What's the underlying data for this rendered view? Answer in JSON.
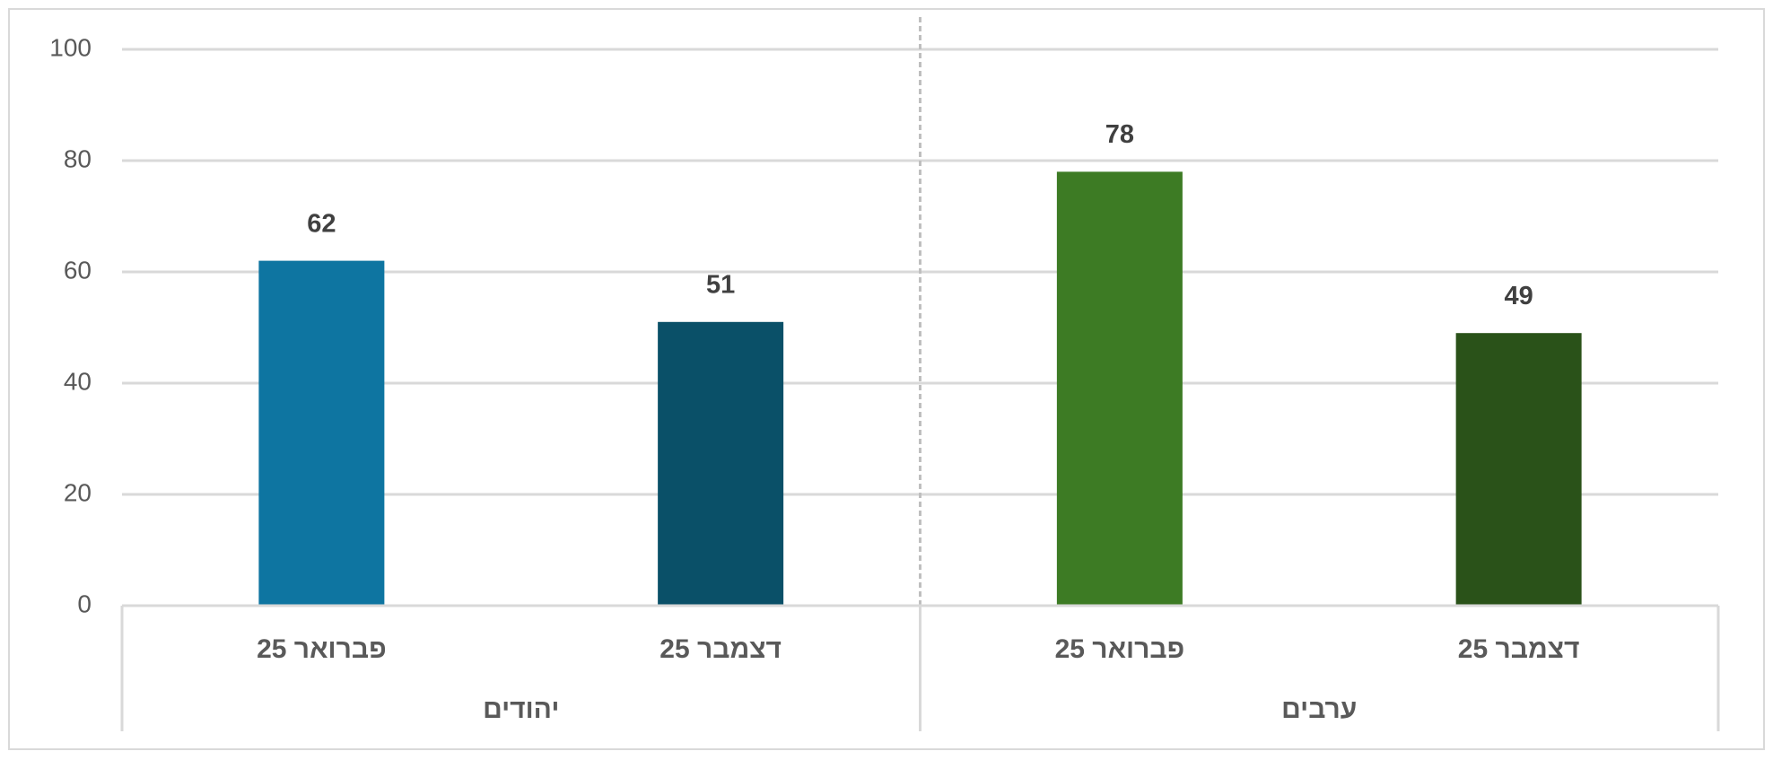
{
  "chart_data": {
    "type": "bar",
    "categories": [
      "פברואר 25",
      "דצמבר 25",
      "פברואר 25",
      "דצמבר 25"
    ],
    "groups": [
      "יהודים",
      "ערבים"
    ],
    "values": [
      62,
      51,
      78,
      49
    ],
    "colors": [
      "#0e75a1",
      "#0a5068",
      "#3d7b24",
      "#2a5219"
    ],
    "ylim": [
      0,
      100
    ],
    "yticks": [
      0,
      20,
      40,
      60,
      80,
      100
    ],
    "grid": true
  }
}
